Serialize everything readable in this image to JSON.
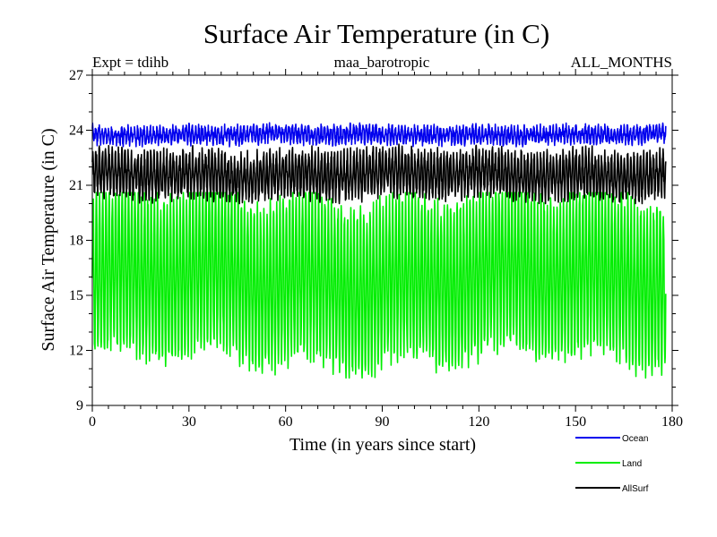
{
  "chart_data": {
    "type": "line",
    "title": "Surface Air Temperature (in C)",
    "subtitle_left": "Expt = tdihb",
    "subtitle_center": "maa_barotropic",
    "subtitle_right": "ALL_MONTHS",
    "xlabel": "Time (in years since start)",
    "ylabel": "Surface Air Temperature (in C)",
    "xlim": [
      0,
      180
    ],
    "ylim": [
      9,
      27
    ],
    "x_ticks": [
      0,
      30,
      60,
      90,
      120,
      150,
      180
    ],
    "y_ticks": [
      9,
      12,
      15,
      18,
      21,
      24,
      27
    ],
    "x_tick_labels": [
      "0",
      "30",
      "60",
      "90",
      "120",
      "150",
      "180"
    ],
    "y_tick_labels": [
      "9",
      "12",
      "15",
      "18",
      "21",
      "24",
      "27"
    ],
    "x_data_range": [
      0,
      178
    ],
    "sampling": "monthly",
    "series": [
      {
        "name": "Land",
        "color": "#00ee00",
        "mean": 15.9,
        "seasonal_min": 11.6,
        "seasonal_max": 20.2,
        "extreme_min": 10.5,
        "extreme_max": 20.6
      },
      {
        "name": "AllSurf",
        "color": "#000000",
        "mean": 21.4,
        "seasonal_min": 20.5,
        "seasonal_max": 22.7,
        "extreme_min": 20.0,
        "extreme_max": 23.3
      },
      {
        "name": "Ocean",
        "color": "#0000ee",
        "mean": 23.8,
        "seasonal_min": 23.4,
        "seasonal_max": 24.1,
        "extreme_min": 23.1,
        "extreme_max": 24.5
      }
    ],
    "legend": [
      {
        "label": "Ocean",
        "color": "#0000ee"
      },
      {
        "label": "Land",
        "color": "#00ee00"
      },
      {
        "label": "AllSurf",
        "color": "#000000"
      }
    ]
  }
}
